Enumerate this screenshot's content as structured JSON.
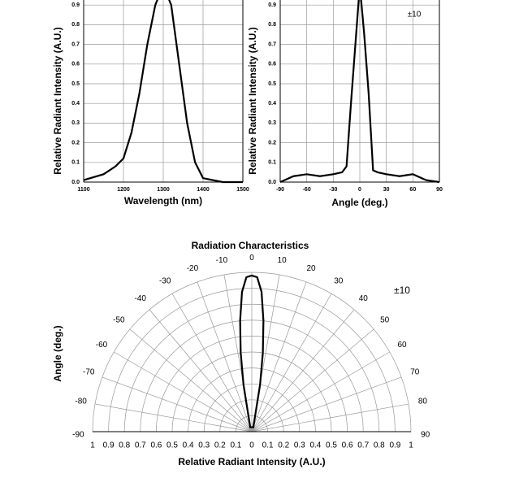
{
  "chart_data": [
    {
      "type": "line",
      "x_label": "Wavelength (nm)",
      "y_label": "Relative Radiant Intensity (A.U.)",
      "x": [
        1100,
        1150,
        1180,
        1200,
        1220,
        1240,
        1260,
        1280,
        1300,
        1320,
        1340,
        1360,
        1380,
        1400,
        1450,
        1500
      ],
      "values": [
        0.01,
        0.04,
        0.08,
        0.12,
        0.25,
        0.45,
        0.7,
        0.9,
        1.0,
        0.9,
        0.6,
        0.3,
        0.1,
        0.02,
        0.0,
        0.0
      ],
      "color": "#000000",
      "xlim": [
        1100,
        1500
      ],
      "xticks": [
        1100,
        1200,
        1300,
        1400,
        1500
      ],
      "ylim": [
        0,
        1
      ],
      "yticks": [
        {
          "value": 0,
          "label": "0.0"
        },
        0.1,
        0.2,
        0.3,
        0.4,
        0.5,
        0.6,
        0.7,
        0.8,
        0.9
      ],
      "grid": true
    },
    {
      "type": "line",
      "x_label": "Angle (deg.)",
      "y_label": "Relative Radiant Intensity (A.U.)",
      "annotation": "±10",
      "x": [
        -90,
        -75,
        -60,
        -45,
        -30,
        -20,
        -15,
        -10,
        -5,
        0,
        5,
        10,
        15,
        20,
        30,
        45,
        60,
        75,
        90
      ],
      "values": [
        0,
        0.03,
        0.04,
        0.03,
        0.04,
        0.05,
        0.08,
        0.4,
        0.7,
        1.0,
        0.75,
        0.45,
        0.06,
        0.05,
        0.04,
        0.03,
        0.04,
        0.01,
        0
      ],
      "color": "#000000",
      "xlim": [
        -90,
        90
      ],
      "xticks": [
        -90,
        -60,
        -30,
        0,
        30,
        60,
        90
      ],
      "ylim": [
        0,
        1
      ],
      "yticks": [
        {
          "value": 0,
          "label": "0.0"
        },
        0.1,
        0.2,
        0.3,
        0.4,
        0.5,
        0.6,
        0.7,
        0.8,
        0.9
      ],
      "grid": true
    },
    {
      "type": "polar",
      "title": "Radiation Characteristics",
      "x_label": "Relative Radiant Intensity (A.U.)",
      "y_label": "Angle (deg.)",
      "annotation": "±10",
      "theta": [
        -20,
        -15,
        -10,
        -8,
        -6,
        -4,
        -2,
        0,
        2,
        4,
        6,
        8,
        10,
        15,
        20
      ],
      "r": [
        0.03,
        0.05,
        0.3,
        0.5,
        0.7,
        0.88,
        0.97,
        0.98,
        0.97,
        0.88,
        0.7,
        0.5,
        0.3,
        0.05,
        0.03
      ],
      "color": "#000000",
      "rlim": [
        0,
        1
      ],
      "rticks": [
        0,
        0.1,
        0.2,
        0.3,
        0.4,
        0.5,
        0.6,
        0.7,
        0.8,
        0.9,
        1
      ],
      "thetaticks": [
        -90,
        -80,
        -70,
        -60,
        -50,
        -40,
        -30,
        -20,
        -10,
        0,
        10,
        20,
        30,
        40,
        50,
        60,
        70,
        80,
        90
      ]
    }
  ]
}
